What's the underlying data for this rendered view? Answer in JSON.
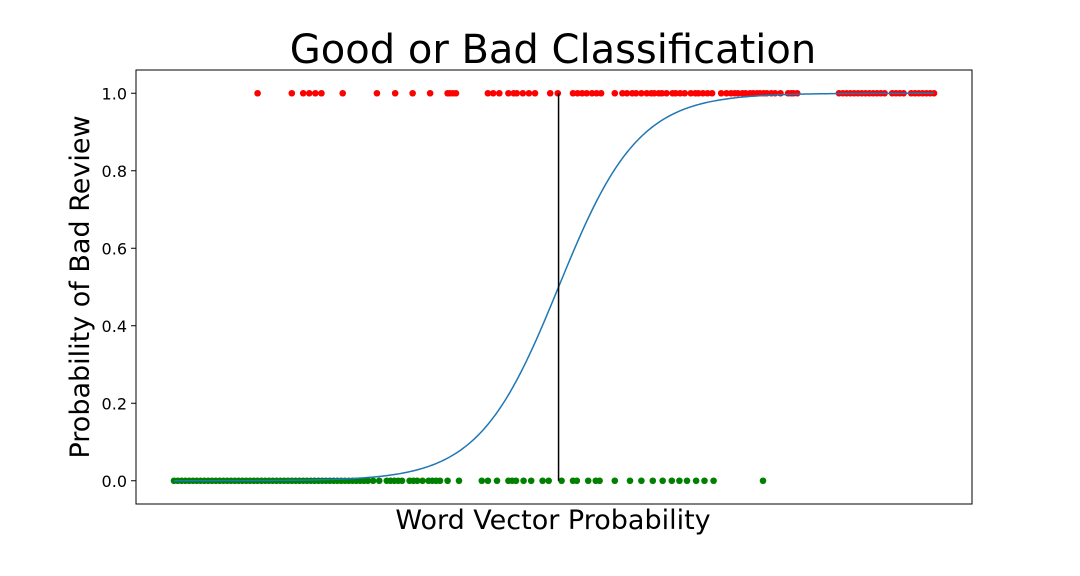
{
  "chart_data": {
    "type": "scatter",
    "title": "Good or Bad Classification",
    "xlabel": "Word Vector Probability",
    "ylabel": "Probability of Bad Review",
    "xlim": [
      -0.05,
      1.05
    ],
    "ylim": [
      -0.06,
      1.06
    ],
    "x_ticks_visible": false,
    "y_ticks": [
      {
        "value": 0.0,
        "label": "0.0"
      },
      {
        "value": 0.2,
        "label": "0.2"
      },
      {
        "value": 0.4,
        "label": "0.4"
      },
      {
        "value": 0.6,
        "label": "0.6"
      },
      {
        "value": 0.8,
        "label": "0.8"
      },
      {
        "value": 1.0,
        "label": "1.0"
      }
    ],
    "grid": false,
    "legend": "none",
    "series": [
      {
        "kind": "scatter",
        "color": "#ff0000",
        "y": 1.0,
        "x": [
          0.11,
          0.155,
          0.17,
          0.178,
          0.186,
          0.194,
          0.222,
          0.267,
          0.291,
          0.314,
          0.337,
          0.36,
          0.363,
          0.367,
          0.371,
          0.413,
          0.42,
          0.428,
          0.44,
          0.447,
          0.451,
          0.459,
          0.467,
          0.475,
          0.495,
          0.505,
          0.525,
          0.531,
          0.537,
          0.543,
          0.55,
          0.556,
          0.562,
          0.58,
          0.59,
          0.596,
          0.603,
          0.608,
          0.615,
          0.622,
          0.628,
          0.632,
          0.638,
          0.642,
          0.648,
          0.656,
          0.66,
          0.666,
          0.672,
          0.68,
          0.686,
          0.69,
          0.696,
          0.702,
          0.708,
          0.72,
          0.727,
          0.733,
          0.738,
          0.742,
          0.748,
          0.752,
          0.758,
          0.762,
          0.767,
          0.771,
          0.776,
          0.78,
          0.786,
          0.791,
          0.798,
          0.808,
          0.812,
          0.815,
          0.82,
          0.875,
          0.88,
          0.885,
          0.89,
          0.895,
          0.9,
          0.905,
          0.91,
          0.915,
          0.92,
          0.925,
          0.93,
          0.935,
          0.945,
          0.95,
          0.955,
          0.96,
          0.97,
          0.975,
          0.98,
          0.985,
          0.99,
          0.995,
          1.0
        ]
      },
      {
        "kind": "scatter",
        "color": "#008000",
        "y": 0.0,
        "x": [
          0.0,
          0.005,
          0.01,
          0.015,
          0.02,
          0.025,
          0.03,
          0.035,
          0.04,
          0.045,
          0.05,
          0.055,
          0.06,
          0.065,
          0.07,
          0.075,
          0.08,
          0.085,
          0.09,
          0.095,
          0.1,
          0.105,
          0.11,
          0.115,
          0.12,
          0.125,
          0.13,
          0.135,
          0.14,
          0.145,
          0.15,
          0.155,
          0.16,
          0.165,
          0.17,
          0.175,
          0.18,
          0.185,
          0.19,
          0.195,
          0.2,
          0.205,
          0.21,
          0.215,
          0.22,
          0.225,
          0.23,
          0.235,
          0.24,
          0.245,
          0.25,
          0.255,
          0.262,
          0.27,
          0.28,
          0.285,
          0.29,
          0.295,
          0.3,
          0.31,
          0.315,
          0.32,
          0.327,
          0.335,
          0.34,
          0.345,
          0.35,
          0.36,
          0.375,
          0.405,
          0.413,
          0.425,
          0.44,
          0.445,
          0.45,
          0.46,
          0.47,
          0.485,
          0.493,
          0.51,
          0.525,
          0.53,
          0.545,
          0.555,
          0.56,
          0.58,
          0.6,
          0.615,
          0.63,
          0.643,
          0.655,
          0.665,
          0.675,
          0.687,
          0.698,
          0.71,
          0.775
        ]
      },
      {
        "kind": "line",
        "name": "",
        "color": "#1f77b4",
        "function": "logistic",
        "center": 0.506,
        "scale": 0.0525,
        "x_range": [
          0.0,
          1.0
        ]
      },
      {
        "kind": "vline",
        "color": "#000000",
        "x": 0.506,
        "y_range": [
          0.0,
          1.0
        ]
      }
    ]
  }
}
